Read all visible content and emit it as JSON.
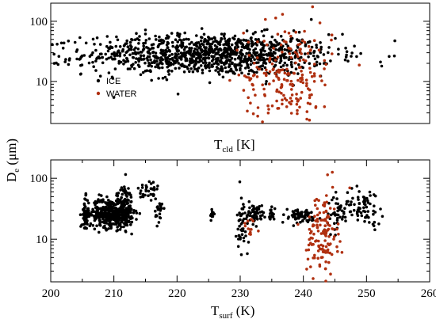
{
  "chart_data": [
    {
      "type": "scatter",
      "panel": "top",
      "xlabel": "T",
      "xlabel_sub": "cld",
      "xlabel_suffix": " [K]",
      "xlim": [
        215,
        258
      ],
      "ylim": [
        2,
        200
      ],
      "yscale": "log",
      "yticks": [
        10,
        100
      ],
      "ytick_labels": [
        "10",
        "100"
      ],
      "xticks": [],
      "grid": false,
      "legend": {
        "placement": "middle-left",
        "entries": [
          {
            "label": "ICE",
            "color": "#000000"
          },
          {
            "label": "WATER",
            "color": "#b03010"
          }
        ]
      },
      "series": [
        {
          "name": "ICE",
          "color": "#000000",
          "cluster": {
            "x_mean": 233,
            "x_sd": 7,
            "y_mean": 28,
            "y_log_sd": 0.17,
            "n": 1100
          }
        },
        {
          "name": "WATER",
          "color": "#b03010",
          "cluster": {
            "x_mean": 242,
            "x_sd": 2.5,
            "y_mean": 12,
            "y_log_sd": 0.45,
            "n": 220
          }
        }
      ]
    },
    {
      "type": "scatter",
      "panel": "bottom",
      "xlabel": "T",
      "xlabel_sub": "surf",
      "xlabel_suffix": " (K)",
      "xlim": [
        200,
        260
      ],
      "ylim": [
        2,
        200
      ],
      "yscale": "log",
      "xticks": [
        200,
        210,
        220,
        230,
        240,
        250,
        260
      ],
      "xtick_labels": [
        "200",
        "210",
        "220",
        "230",
        "240",
        "250",
        "260"
      ],
      "yticks": [
        10,
        100
      ],
      "ytick_labels": [
        "10",
        "100"
      ],
      "grid": false,
      "series": [
        {
          "name": "ICE",
          "color": "#000000",
          "clusters": [
            {
              "x_mean": 205.5,
              "x_sd": 0.3,
              "y_mean": 25,
              "y_log_sd": 0.14,
              "n": 60
            },
            {
              "x_mean": 209.5,
              "x_sd": 1.6,
              "y_mean": 27,
              "y_log_sd": 0.12,
              "n": 380
            },
            {
              "x_mean": 211.8,
              "x_sd": 0.6,
              "y_mean": 35,
              "y_log_sd": 0.18,
              "n": 90
            },
            {
              "x_mean": 215.5,
              "x_sd": 0.8,
              "y_mean": 60,
              "y_log_sd": 0.12,
              "n": 35
            },
            {
              "x_mean": 217.2,
              "x_sd": 0.3,
              "y_mean": 30,
              "y_log_sd": 0.1,
              "n": 25
            },
            {
              "x_mean": 225.5,
              "x_sd": 0.15,
              "y_mean": 25,
              "y_log_sd": 0.05,
              "n": 12
            },
            {
              "x_mean": 230.5,
              "x_sd": 0.5,
              "y_mean": 18,
              "y_log_sd": 0.25,
              "n": 50
            },
            {
              "x_mean": 232.5,
              "x_sd": 0.6,
              "y_mean": 26,
              "y_log_sd": 0.07,
              "n": 45
            },
            {
              "x_mean": 235,
              "x_sd": 0.2,
              "y_mean": 27,
              "y_log_sd": 0.06,
              "n": 20
            },
            {
              "x_mean": 239.5,
              "x_sd": 1.6,
              "y_mean": 24,
              "y_log_sd": 0.06,
              "n": 70
            },
            {
              "x_mean": 245.5,
              "x_sd": 0.8,
              "y_mean": 26,
              "y_log_sd": 0.15,
              "n": 40
            },
            {
              "x_mean": 249.5,
              "x_sd": 1.6,
              "y_mean": 35,
              "y_log_sd": 0.15,
              "n": 70
            }
          ]
        },
        {
          "name": "WATER",
          "color": "#b03010",
          "clusters": [
            {
              "x_mean": 243,
              "x_sd": 1.2,
              "y_mean": 12,
              "y_log_sd": 0.35,
              "n": 130
            },
            {
              "x_mean": 231.5,
              "x_sd": 0.6,
              "y_mean": 14,
              "y_log_sd": 0.1,
              "n": 12
            }
          ]
        }
      ]
    }
  ],
  "shared_ylabel": {
    "main": "D",
    "sub": "e",
    "suffix": " (μm)"
  }
}
